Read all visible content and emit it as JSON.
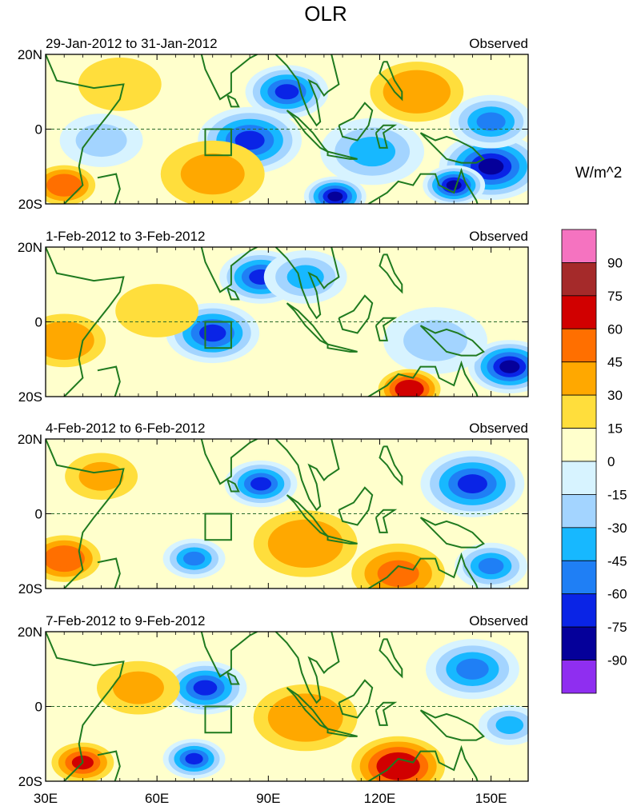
{
  "figure": {
    "title": "OLR",
    "units": "W/m^2"
  },
  "colorbar": {
    "labels": [
      "90",
      "75",
      "60",
      "45",
      "30",
      "15",
      "0",
      "-15",
      "-30",
      "-45",
      "-60",
      "-75",
      "-90"
    ],
    "colors": [
      "#f573c0",
      "#a52a2a",
      "#d10000",
      "#ff6f00",
      "#ffa800",
      "#ffde3c",
      "#ffffcc",
      "#d7f3ff",
      "#a3d4ff",
      "#17b8ff",
      "#1f7ff5",
      "#0a24e6",
      "#05009a",
      "#8f2ef0"
    ]
  },
  "axes": {
    "lon_ticks": [
      "30E",
      "60E",
      "90E",
      "120E",
      "150E"
    ],
    "lat_ticks": [
      "20N",
      "0",
      "20S"
    ],
    "lon_range": [
      30,
      160
    ],
    "lat_range": [
      -20,
      20
    ]
  },
  "panels": [
    {
      "period": "29-Jan-2012 to 31-Jan-2012",
      "label": "Observed",
      "anomalies": [
        {
          "lon": 95,
          "lat": 10,
          "r": 8,
          "value": -70
        },
        {
          "lon": 85,
          "lat": -3,
          "r": 10,
          "value": -75
        },
        {
          "lon": 108,
          "lat": -18,
          "r": 6,
          "value": -90
        },
        {
          "lon": 150,
          "lat": -10,
          "r": 10,
          "value": -85
        },
        {
          "lon": 140,
          "lat": -15,
          "r": 6,
          "value": -80
        },
        {
          "lon": 150,
          "lat": 2,
          "r": 8,
          "value": -55
        },
        {
          "lon": 118,
          "lat": -6,
          "r": 10,
          "value": -35
        },
        {
          "lon": 45,
          "lat": -3,
          "r": 8,
          "value": -30
        },
        {
          "lon": 130,
          "lat": 10,
          "r": 9,
          "value": 40
        },
        {
          "lon": 75,
          "lat": -12,
          "r": 10,
          "value": 30
        },
        {
          "lon": 35,
          "lat": -15,
          "r": 6,
          "value": 50
        },
        {
          "lon": 50,
          "lat": 12,
          "r": 8,
          "value": 20
        }
      ]
    },
    {
      "period": "1-Feb-2012 to 3-Feb-2012",
      "label": "Observed",
      "anomalies": [
        {
          "lon": 75,
          "lat": -3,
          "r": 9,
          "value": -75
        },
        {
          "lon": 88,
          "lat": 12,
          "r": 8,
          "value": -65
        },
        {
          "lon": 100,
          "lat": 12,
          "r": 8,
          "value": -40
        },
        {
          "lon": 155,
          "lat": -12,
          "r": 8,
          "value": -80
        },
        {
          "lon": 135,
          "lat": -5,
          "r": 10,
          "value": -30
        },
        {
          "lon": 128,
          "lat": -18,
          "r": 6,
          "value": 65
        },
        {
          "lon": 35,
          "lat": -5,
          "r": 8,
          "value": 35
        },
        {
          "lon": 60,
          "lat": 3,
          "r": 8,
          "value": 20
        }
      ]
    },
    {
      "period": "4-Feb-2012 to 6-Feb-2012",
      "label": "Observed",
      "anomalies": [
        {
          "lon": 88,
          "lat": 8,
          "r": 7,
          "value": -75
        },
        {
          "lon": 145,
          "lat": 8,
          "r": 10,
          "value": -65
        },
        {
          "lon": 150,
          "lat": -14,
          "r": 7,
          "value": -60
        },
        {
          "lon": 70,
          "lat": -12,
          "r": 6,
          "value": -60
        },
        {
          "lon": 100,
          "lat": -8,
          "r": 10,
          "value": 40
        },
        {
          "lon": 125,
          "lat": -16,
          "r": 9,
          "value": 45
        },
        {
          "lon": 35,
          "lat": -12,
          "r": 7,
          "value": 50
        },
        {
          "lon": 45,
          "lat": 10,
          "r": 7,
          "value": 30
        }
      ]
    },
    {
      "period": "7-Feb-2012 to 9-Feb-2012",
      "label": "Observed",
      "anomalies": [
        {
          "lon": 73,
          "lat": 5,
          "r": 8,
          "value": -70
        },
        {
          "lon": 70,
          "lat": -14,
          "r": 6,
          "value": -70
        },
        {
          "lon": 145,
          "lat": 10,
          "r": 9,
          "value": -55
        },
        {
          "lon": 155,
          "lat": -5,
          "r": 6,
          "value": -40
        },
        {
          "lon": 100,
          "lat": -3,
          "r": 10,
          "value": 40
        },
        {
          "lon": 125,
          "lat": -16,
          "r": 9,
          "value": 65
        },
        {
          "lon": 40,
          "lat": -15,
          "r": 6,
          "value": 60
        },
        {
          "lon": 55,
          "lat": 5,
          "r": 8,
          "value": 30
        }
      ]
    }
  ]
}
